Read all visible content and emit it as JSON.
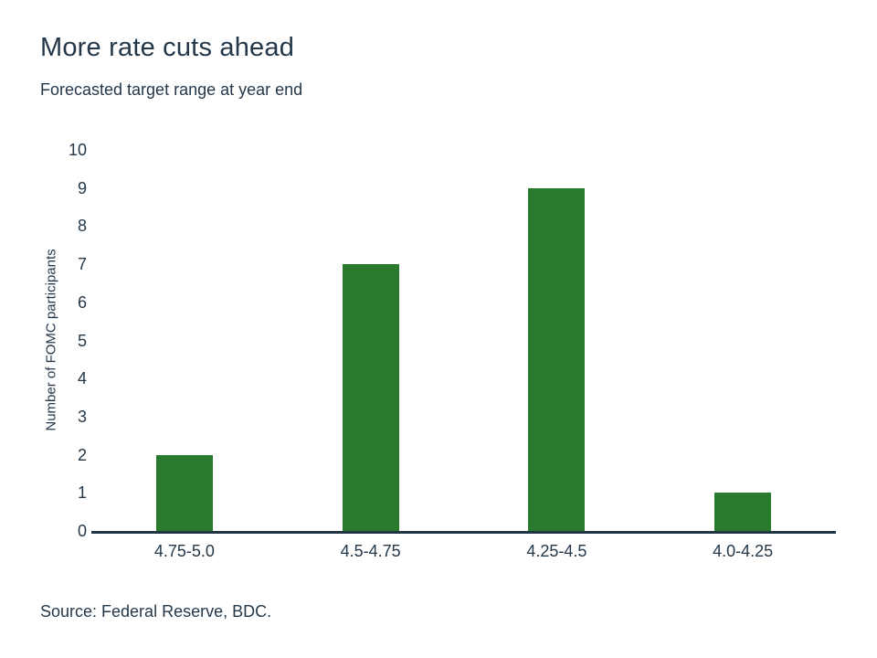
{
  "title": "More rate cuts ahead",
  "subtitle": "Forecasted target range at year end",
  "source": "Source: Federal Reserve, BDC.",
  "chart_data": {
    "type": "bar",
    "title": "More rate cuts ahead",
    "subtitle": "Forecasted target range at year end",
    "categories": [
      "4.75-5.0",
      "4.5-4.75",
      "4.25-4.5",
      "4.0-4.25"
    ],
    "values": [
      2,
      7,
      9,
      1
    ],
    "xlabel": "",
    "ylabel": "Number of FOMC participants",
    "ylim": [
      0,
      10
    ],
    "yticks": [
      0,
      1,
      2,
      3,
      4,
      5,
      6,
      7,
      8,
      9,
      10
    ],
    "grid": false,
    "legend": false,
    "bar_color": "#297A2D",
    "axis_color": "#203644",
    "text_color": "#24384A",
    "source": "Source: Federal Reserve, BDC."
  }
}
